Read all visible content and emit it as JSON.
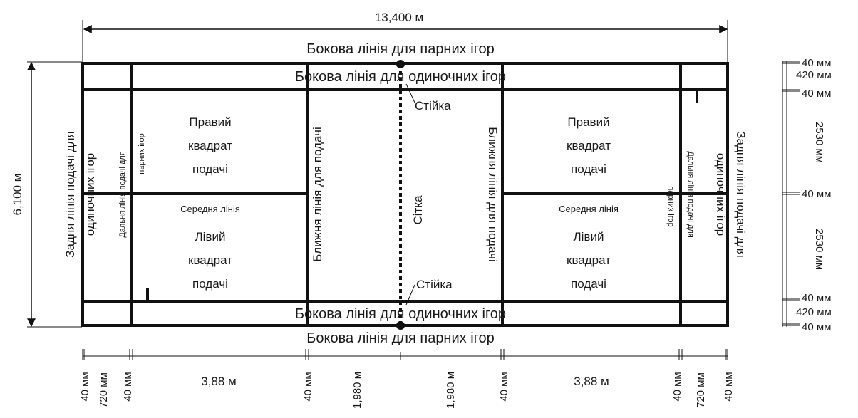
{
  "colors": {
    "line": "#111111",
    "background": "#ffffff"
  },
  "dimensions": {
    "total_length": "13,400 м",
    "total_width": "6,100 м",
    "right_scale": [
      "40 мм",
      "420 мм",
      "40 мм",
      "2530 мм",
      "40 мм",
      "2530 мм",
      "40 мм",
      "420 мм",
      "40 мм"
    ],
    "bottom_scale": [
      "40 мм",
      "720 мм",
      "40 мм",
      "3,88 м",
      "40 мм",
      "1,980 м",
      "1,980 м",
      "40 мм",
      "3,88 м",
      "40 мм",
      "720 мм",
      "40 мм"
    ]
  },
  "labels": {
    "doubles_sideline_top": "Бокова лінія для парних ігор",
    "doubles_sideline_bottom": "Бокова лінія для парних ігор",
    "singles_sideline_top": "Бокова лінія для одиночних ігор",
    "singles_sideline_bottom": "Бокова лінія для одиночних ігор",
    "post_top": "Стійка",
    "post_bottom": "Стійка",
    "net": "Сітка",
    "left": {
      "back_line_singles_1": "Задня лінія подачі для",
      "back_line_singles_2": "одиночних ігор",
      "long_service_doubles_1": "Дальня лінія подачі для",
      "long_service_doubles_2": "парних ігор",
      "right_box": [
        "Правий",
        "квадрат",
        "подачі"
      ],
      "center_line": "Середня лінія",
      "left_box": [
        "Лівий",
        "квадрат",
        "подачі"
      ],
      "short_service_line": "Ближня лінія для подачі"
    },
    "right": {
      "short_service_line": "Ближня лінія для подачі",
      "right_box": [
        "Правий",
        "квадрат",
        "подачі"
      ],
      "center_line": "Середня лінія",
      "left_box": [
        "Лівий",
        "квадрат",
        "подачі"
      ],
      "long_service_doubles_1": "Дальня лінія подачі для",
      "long_service_doubles_2": "парних ігор",
      "back_line_singles_1": "Задня лінія подачі для",
      "back_line_singles_2": "одиночних ігор"
    }
  }
}
